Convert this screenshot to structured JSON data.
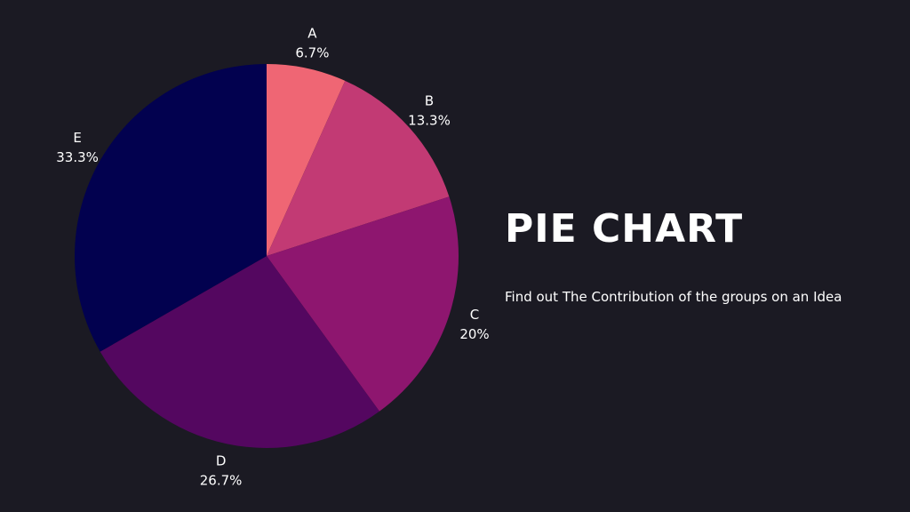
{
  "title": "PIE CHART",
  "subtitle": "Find out The Contribution of the groups on an Idea",
  "colors": {
    "background": "#1b1a23",
    "text": "#ffffff"
  },
  "chart_data": {
    "type": "pie",
    "title": "",
    "categories": [
      "A",
      "B",
      "C",
      "D",
      "E"
    ],
    "values": [
      6.7,
      13.3,
      20,
      26.7,
      33.3
    ],
    "value_labels": [
      "6.7%",
      "13.3%",
      "20%",
      "26.7%",
      "33.3%"
    ],
    "colors": [
      "#ef6674",
      "#c23a74",
      "#8e166f",
      "#540760",
      "#02014f"
    ],
    "start_angle": "12 o'clock",
    "direction": "clockwise",
    "legend": "none",
    "label_position": "outside"
  }
}
